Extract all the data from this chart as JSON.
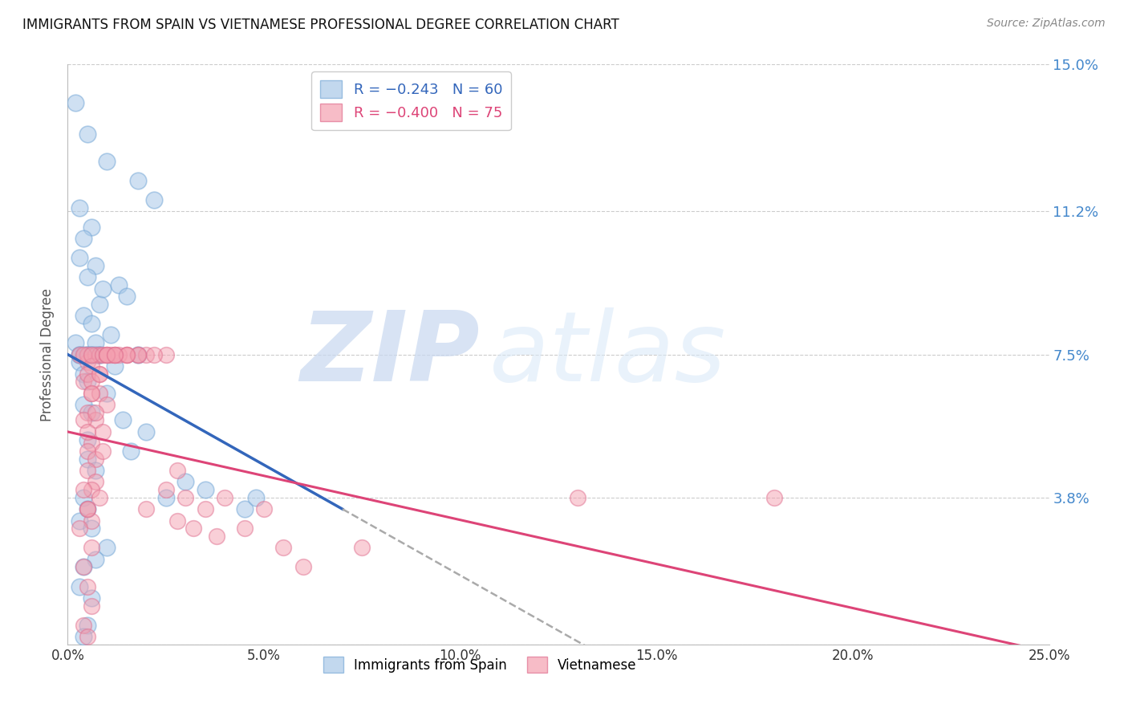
{
  "title": "IMMIGRANTS FROM SPAIN VS VIETNAMESE PROFESSIONAL DEGREE CORRELATION CHART",
  "source": "Source: ZipAtlas.com",
  "ylabel": "Professional Degree",
  "xlim": [
    0.0,
    25.0
  ],
  "ylim": [
    0.0,
    15.0
  ],
  "xticks": [
    0.0,
    5.0,
    10.0,
    15.0,
    20.0,
    25.0
  ],
  "xtick_labels": [
    "0.0%",
    "5.0%",
    "10.0%",
    "15.0%",
    "20.0%",
    "25.0%"
  ],
  "yticks": [
    0.0,
    3.8,
    7.5,
    11.2,
    15.0
  ],
  "ytick_labels": [
    "",
    "3.8%",
    "7.5%",
    "11.2%",
    "15.0%"
  ],
  "grid_color": "#cccccc",
  "background_color": "#ffffff",
  "watermark_zip": "ZIP",
  "watermark_atlas": "atlas",
  "legend_label_r1": "R = −0.243   N = 60",
  "legend_label_r2": "R = −0.400   N = 75",
  "legend_label_spain": "Immigrants from Spain",
  "legend_label_viet": "Vietnamese",
  "blue_color": "#a8c8e8",
  "pink_color": "#f4a0b0",
  "trend_blue": "#3366bb",
  "trend_pink": "#dd4477",
  "trend_dash_color": "#aaaaaa",
  "blue_trend_x0": 0.0,
  "blue_trend_x1": 7.0,
  "blue_trend_y0": 7.5,
  "blue_trend_y1": 3.5,
  "pink_trend_x0": 0.0,
  "pink_trend_x1": 25.0,
  "pink_trend_y0": 5.5,
  "pink_trend_y1": -0.2,
  "dash_x0": 7.0,
  "dash_x1": 25.0,
  "spain_x": [
    0.2,
    0.5,
    1.0,
    1.8,
    2.2,
    0.3,
    0.6,
    0.4,
    0.3,
    0.7,
    0.5,
    1.3,
    1.5,
    0.8,
    0.9,
    0.4,
    0.6,
    1.1,
    0.2,
    0.5,
    0.3,
    0.7,
    0.4,
    0.6,
    0.5,
    1.0,
    0.8,
    0.3,
    0.7,
    1.2,
    0.4,
    0.6,
    1.4,
    2.0,
    0.5,
    1.6,
    0.4,
    0.3,
    1.8,
    0.6,
    0.5,
    0.7,
    3.0,
    3.5,
    0.4,
    0.5,
    0.3,
    0.6,
    0.8,
    0.5,
    1.0,
    0.7,
    0.4,
    2.5,
    4.5,
    0.3,
    0.6,
    4.8,
    0.5,
    0.4
  ],
  "spain_y": [
    14.0,
    13.2,
    12.5,
    12.0,
    11.5,
    11.3,
    10.8,
    10.5,
    10.0,
    9.8,
    9.5,
    9.3,
    9.0,
    8.8,
    9.2,
    8.5,
    8.3,
    8.0,
    7.8,
    7.5,
    7.3,
    7.8,
    7.0,
    7.5,
    6.8,
    6.5,
    7.5,
    7.5,
    7.5,
    7.2,
    6.2,
    6.0,
    5.8,
    5.5,
    5.3,
    5.0,
    7.5,
    7.5,
    7.5,
    7.5,
    4.8,
    4.5,
    4.2,
    4.0,
    3.8,
    3.5,
    3.2,
    3.0,
    7.5,
    7.5,
    2.5,
    2.2,
    2.0,
    3.8,
    3.5,
    1.5,
    1.2,
    3.8,
    0.5,
    0.2
  ],
  "viet_x": [
    0.3,
    0.5,
    0.8,
    0.4,
    0.6,
    0.5,
    0.7,
    0.4,
    0.6,
    0.5,
    0.8,
    1.0,
    0.6,
    0.5,
    0.7,
    0.9,
    0.4,
    0.6,
    0.5,
    0.7,
    1.1,
    0.8,
    0.6,
    1.0,
    0.5,
    0.7,
    0.6,
    0.8,
    0.5,
    0.6,
    1.5,
    1.2,
    0.9,
    1.3,
    1.0,
    0.8,
    0.6,
    0.7,
    0.5,
    0.9,
    1.8,
    2.0,
    1.5,
    1.2,
    1.0,
    2.5,
    2.2,
    1.8,
    1.5,
    1.2,
    2.8,
    2.5,
    2.0,
    3.0,
    2.8,
    3.5,
    3.2,
    4.0,
    3.8,
    5.0,
    4.5,
    5.5,
    6.0,
    7.5,
    0.4,
    0.5,
    0.3,
    0.6,
    0.4,
    0.5,
    0.6,
    0.4,
    0.5,
    13.0,
    18.0
  ],
  "viet_y": [
    7.5,
    7.3,
    7.0,
    6.8,
    6.5,
    7.5,
    7.5,
    7.5,
    7.2,
    7.0,
    6.5,
    6.2,
    6.8,
    6.0,
    5.8,
    5.5,
    5.8,
    5.2,
    5.0,
    4.8,
    7.5,
    7.5,
    7.5,
    7.5,
    4.5,
    4.2,
    4.0,
    3.8,
    3.5,
    3.2,
    7.5,
    7.5,
    7.5,
    7.5,
    7.5,
    7.0,
    6.5,
    6.0,
    5.5,
    5.0,
    7.5,
    7.5,
    7.5,
    7.5,
    7.5,
    7.5,
    7.5,
    7.5,
    7.5,
    7.5,
    4.5,
    4.0,
    3.5,
    3.8,
    3.2,
    3.5,
    3.0,
    3.8,
    2.8,
    3.5,
    3.0,
    2.5,
    2.0,
    2.5,
    4.0,
    3.5,
    3.0,
    2.5,
    2.0,
    1.5,
    1.0,
    0.5,
    0.2,
    3.8,
    3.8
  ]
}
